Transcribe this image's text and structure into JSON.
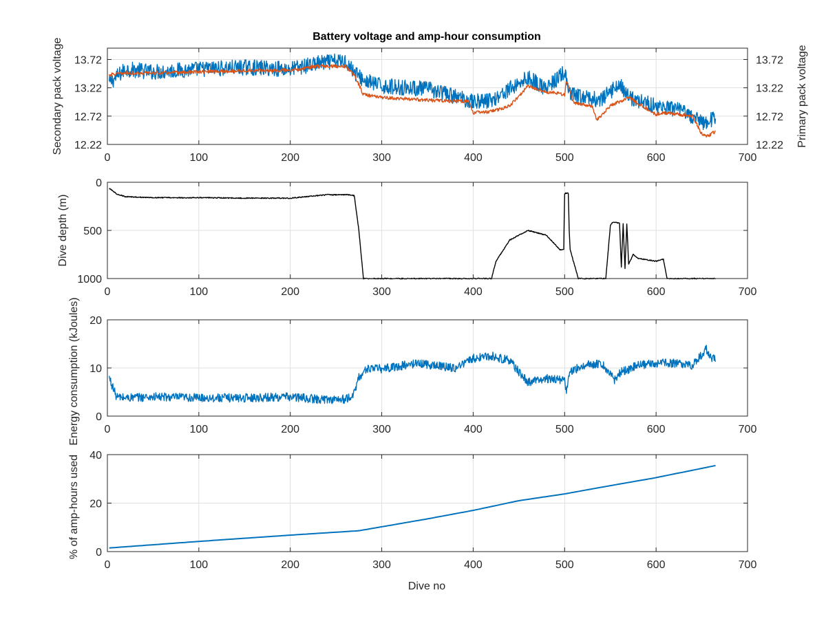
{
  "chart_data": [
    {
      "type": "line",
      "title": "Battery voltage and amp-hour consumption",
      "xlabel": "",
      "ylabel_left": "Secondary pack voltage",
      "ylabel_right": "Primary pack voltage",
      "xlim": [
        0,
        700
      ],
      "ylim": [
        12.22,
        13.92
      ],
      "x_ticks": [
        0,
        100,
        200,
        300,
        400,
        500,
        600,
        700
      ],
      "y_ticks": [
        12.22,
        12.72,
        13.22,
        13.72
      ],
      "y_tick_labels": [
        "12.22",
        "12.72",
        "13.22",
        "13.72"
      ],
      "grid": true,
      "colors": {
        "left_axis": "#0072BD",
        "right_axis": "#D95319"
      },
      "series": [
        {
          "color": "#0072BD",
          "axis": "left",
          "noise": 0.14,
          "x": [
            2,
            20,
            50,
            100,
            150,
            200,
            230,
            260,
            270,
            280,
            300,
            350,
            400,
            420,
            450,
            460,
            480,
            500,
            505,
            520,
            540,
            560,
            570,
            600,
            630,
            645,
            655,
            665
          ],
          "y": [
            13.3,
            13.55,
            13.5,
            13.55,
            13.58,
            13.55,
            13.65,
            13.7,
            13.5,
            13.35,
            13.25,
            13.2,
            12.98,
            13.0,
            13.3,
            13.4,
            13.2,
            13.5,
            13.1,
            13.05,
            13.0,
            13.3,
            13.05,
            12.9,
            12.8,
            12.65,
            12.6,
            12.7
          ]
        },
        {
          "color": "#D95319",
          "axis": "right",
          "noise": 0.03,
          "x": [
            2,
            20,
            50,
            100,
            150,
            200,
            230,
            260,
            270,
            280,
            300,
            350,
            395,
            400,
            420,
            440,
            460,
            480,
            500,
            502,
            510,
            530,
            535,
            550,
            570,
            580,
            600,
            610,
            640,
            650,
            655,
            665
          ],
          "y": [
            13.45,
            13.48,
            13.48,
            13.5,
            13.52,
            13.53,
            13.6,
            13.6,
            13.45,
            13.1,
            13.05,
            13.0,
            12.98,
            12.78,
            12.8,
            12.9,
            13.25,
            13.15,
            13.1,
            13.35,
            12.95,
            12.9,
            12.65,
            12.9,
            13.05,
            12.95,
            12.75,
            12.78,
            12.72,
            12.4,
            12.35,
            12.45
          ]
        }
      ]
    },
    {
      "type": "line",
      "title": "",
      "xlabel": "",
      "ylabel": "Dive depth (m)",
      "xlim": [
        0,
        700
      ],
      "ylim": [
        0,
        1000
      ],
      "y_reversed": true,
      "x_ticks": [
        0,
        100,
        200,
        300,
        400,
        500,
        600,
        700
      ],
      "y_ticks": [
        0,
        500,
        1000
      ],
      "y_tick_labels": [
        "0",
        "500",
        "1000"
      ],
      "grid": true,
      "series": [
        {
          "color": "#000000",
          "noise": 5,
          "x": [
            2,
            10,
            20,
            50,
            100,
            150,
            200,
            240,
            265,
            270,
            275,
            280,
            282,
            300,
            350,
            400,
            420,
            425,
            440,
            460,
            480,
            495,
            499,
            500,
            501,
            504,
            505,
            506,
            515,
            520,
            545,
            550,
            552,
            560,
            562,
            564,
            566,
            568,
            570,
            575,
            580,
            600,
            608,
            612,
            640,
            665
          ],
          "y": [
            60,
            120,
            150,
            160,
            160,
            165,
            165,
            130,
            130,
            140,
            500,
            1000,
            1000,
            1000,
            1000,
            1000,
            1000,
            820,
            600,
            500,
            550,
            700,
            700,
            120,
            115,
            110,
            500,
            700,
            1000,
            1000,
            1000,
            450,
            420,
            420,
            880,
            430,
            900,
            430,
            850,
            750,
            790,
            820,
            800,
            1000,
            1000,
            1000
          ]
        }
      ]
    },
    {
      "type": "line",
      "title": "",
      "xlabel": "",
      "ylabel": "Energy consumption (kJoules)",
      "xlim": [
        0,
        700
      ],
      "ylim": [
        0,
        20
      ],
      "x_ticks": [
        0,
        100,
        200,
        300,
        400,
        500,
        600,
        700
      ],
      "y_ticks": [
        0,
        10,
        20
      ],
      "y_tick_labels": [
        "0",
        "10",
        "20"
      ],
      "grid": true,
      "series": [
        {
          "color": "#0072BD",
          "noise": 0.9,
          "x": [
            2,
            10,
            20,
            50,
            100,
            150,
            200,
            230,
            260,
            268,
            275,
            285,
            300,
            340,
            380,
            400,
            420,
            440,
            455,
            460,
            480,
            500,
            502,
            505,
            520,
            540,
            555,
            560,
            580,
            600,
            620,
            640,
            655,
            660,
            665
          ],
          "y": [
            8,
            4,
            3.8,
            4,
            3.8,
            3.8,
            4,
            3.5,
            3.5,
            4,
            8,
            10,
            9.8,
            11,
            10,
            12,
            12.5,
            11.5,
            8,
            7,
            7.8,
            7.5,
            5,
            9,
            10.5,
            11,
            7.5,
            9,
            10.5,
            11,
            11,
            10.5,
            14,
            12,
            12
          ]
        }
      ]
    },
    {
      "type": "line",
      "title": "",
      "xlabel": "Dive no",
      "ylabel": "% of amp-hours used",
      "xlim": [
        0,
        700
      ],
      "ylim": [
        0,
        40
      ],
      "x_ticks": [
        0,
        100,
        200,
        300,
        400,
        500,
        600,
        700
      ],
      "y_ticks": [
        0,
        20,
        40
      ],
      "y_tick_labels": [
        "0",
        "20",
        "40"
      ],
      "grid": true,
      "series": [
        {
          "color": "#0072BD",
          "noise": 0,
          "x": [
            2,
            100,
            200,
            275,
            350,
            400,
            450,
            500,
            550,
            600,
            665
          ],
          "y": [
            1.5,
            4.2,
            6.8,
            8.6,
            13.5,
            17,
            21,
            23.8,
            27.2,
            30.5,
            35.5
          ]
        }
      ]
    }
  ]
}
